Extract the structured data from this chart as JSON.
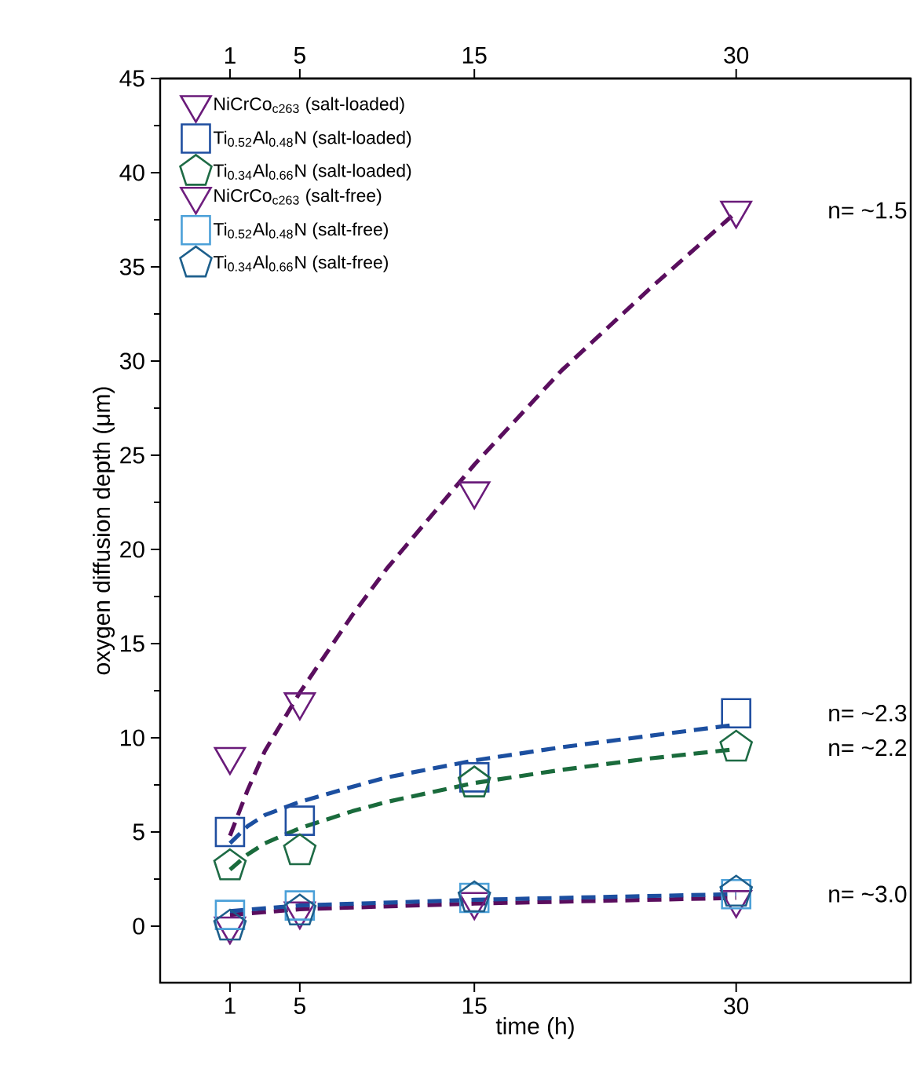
{
  "chart_data": {
    "type": "scatter",
    "xlabel": "time (h)",
    "ylabel": "oxygen diffusion depth (μm)",
    "xlim": [
      -3,
      40
    ],
    "xticks": [
      1,
      5,
      15,
      30
    ],
    "x2lim": [
      -3,
      40
    ],
    "x2ticks": [
      1,
      5,
      15,
      30
    ],
    "ylim": [
      -3,
      45
    ],
    "yticks": [
      0,
      5,
      10,
      15,
      20,
      25,
      30,
      35,
      40,
      45
    ],
    "grid": false,
    "legend": "top left",
    "series": [
      {
        "name": "NiCrCo$_{c263}$ (salt-loaded)",
        "marker": "triangle",
        "color": "#6a1b7a",
        "x": [
          1,
          5,
          15,
          30
        ],
        "values": [
          9.0,
          11.9,
          23.1,
          38.0
        ]
      },
      {
        "name": "Ti$_{0.52}$Al$_{0.48}$N (salt-loaded)",
        "marker": "square",
        "color": "#1f4ea0",
        "x": [
          1,
          5,
          15,
          30
        ],
        "values": [
          5.0,
          5.6,
          7.9,
          11.3
        ]
      },
      {
        "name": "Ti$_{0.34}$Al$_{0.66}$N (salt-loaded)",
        "color": "#1e6b45",
        "x": [
          1,
          5,
          15,
          30
        ],
        "values": [
          3.2,
          4.0,
          7.6,
          9.5
        ]
      },
      {
        "name": "NiCrCo$_{c263}$ (salt-free)",
        "marker": "triangle",
        "color": "#6f1f7f",
        "x": [
          1,
          5,
          15,
          30
        ],
        "values": [
          0.0,
          0.8,
          1.3,
          1.4
        ]
      },
      {
        "name": "Ti$_{0.52}$Al$_{0.48}$N (salt-free)",
        "marker": "square",
        "color": "#4ba0d8",
        "x": [
          1,
          5,
          15,
          30
        ],
        "values": [
          0.6,
          1.1,
          1.5,
          1.7
        ]
      },
      {
        "name": "Ti$_{0.34}$Al$_{0.66}$N (salt-free)",
        "color": "#1d5f8c",
        "x": [
          1,
          5,
          15,
          30
        ],
        "values": [
          0.0,
          0.8,
          1.5,
          1.8
        ]
      },
      {
        "type": "line",
        "line_style": "dashed",
        "marker": "none",
        "color": "#5a0e5e",
        "x": [
          1,
          2,
          3,
          5,
          8,
          10,
          15,
          20,
          25,
          30
        ],
        "values": [
          4.8,
          7.2,
          9.3,
          12.4,
          16.5,
          19.0,
          24.5,
          29.5,
          33.8,
          37.9
        ]
      },
      {
        "type": "line",
        "line_style": "dashed",
        "marker": "none",
        "color": "#1c4fa0",
        "x": [
          1,
          2,
          3,
          5,
          8,
          10,
          15,
          20,
          25,
          30
        ],
        "values": [
          4.4,
          5.3,
          5.9,
          6.6,
          7.4,
          7.9,
          8.8,
          9.5,
          10.1,
          10.7
        ]
      },
      {
        "type": "line",
        "line_style": "dashed",
        "marker": "none",
        "color": "#1a6b3c",
        "x": [
          1,
          2,
          3,
          5,
          8,
          10,
          15,
          20,
          25,
          30
        ],
        "values": [
          3.0,
          3.8,
          4.4,
          5.2,
          6.1,
          6.6,
          7.6,
          8.3,
          8.9,
          9.4
        ]
      },
      {
        "type": "line",
        "line_style": "dashed",
        "marker": "none",
        "color": "#5a0e5e",
        "x": [
          1,
          5,
          15,
          30
        ],
        "values": [
          0.6,
          0.9,
          1.2,
          1.5
        ]
      },
      {
        "type": "line",
        "line_style": "dashed",
        "marker": "none",
        "color": "#1c4fa0",
        "x": [
          1,
          5,
          15,
          30
        ],
        "values": [
          0.8,
          1.1,
          1.4,
          1.7
        ]
      }
    ],
    "annotations": [
      "n= ~1.5",
      "n= ~2.3",
      "n= ~2.2",
      "n= ~3.0"
    ]
  }
}
